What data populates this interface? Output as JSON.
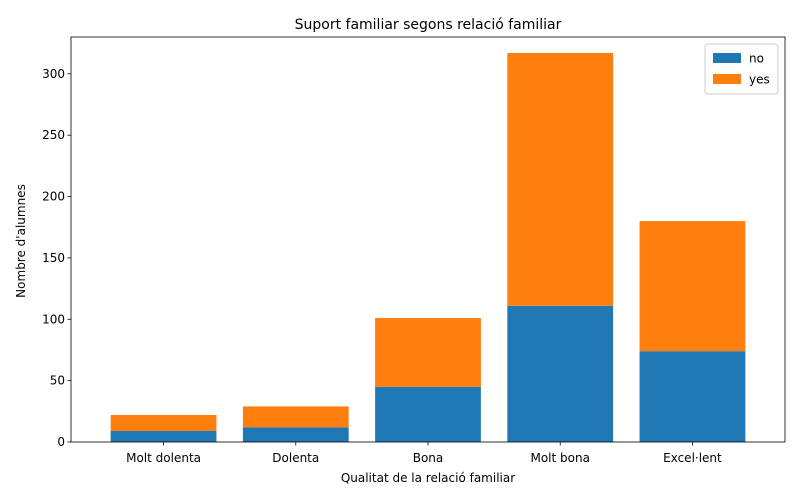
{
  "chart_data": {
    "type": "bar",
    "stacked": true,
    "title": "Suport familiar segons relació familiar",
    "xlabel": "Qualitat de la relació familiar",
    "ylabel": "Nombre d'alumnes",
    "categories": [
      "Molt dolenta",
      "Dolenta",
      "Bona",
      "Molt bona",
      "Excel·lent"
    ],
    "series": [
      {
        "name": "no",
        "values": [
          9,
          12,
          45,
          111,
          74
        ],
        "color": "#1f77b4"
      },
      {
        "name": "yes",
        "values": [
          13,
          17,
          56,
          206,
          106
        ],
        "color": "#ff7f0e"
      }
    ],
    "ylim": [
      0,
      330
    ],
    "yticks": [
      0,
      50,
      100,
      150,
      200,
      250,
      300
    ],
    "grid": false,
    "legend": "top-right"
  }
}
